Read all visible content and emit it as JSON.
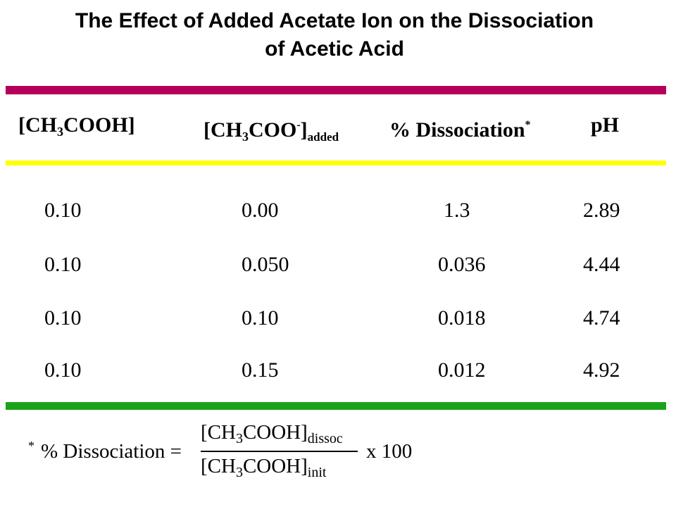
{
  "title": {
    "line1": "The Effect of Added Acetate Ion on the Dissociation",
    "line2": "of Acetic Acid"
  },
  "colors": {
    "rule_top": "#b5005b",
    "rule_mid": "#ffff00",
    "rule_bottom": "#1aa31a"
  },
  "headers": {
    "col1_a": "[CH",
    "col1_sub": "3",
    "col1_b": "COOH]",
    "col2_a": "[CH",
    "col2_sub": "3",
    "col2_b": "COO",
    "col2_sup": "-",
    "col2_c": "]",
    "col2_added": "added",
    "col3": "% Dissociation",
    "col3_star": "*",
    "col4": "pH"
  },
  "rows": [
    {
      "acid": "0.10",
      "acetate": "0.00",
      "dissociation": "1.3",
      "ph": "2.89"
    },
    {
      "acid": "0.10",
      "acetate": "0.050",
      "dissociation": "0.036",
      "ph": "4.44"
    },
    {
      "acid": "0.10",
      "acetate": "0.10",
      "dissociation": "0.018",
      "ph": "4.74"
    },
    {
      "acid": "0.10",
      "acetate": "0.15",
      "dissociation": "0.012",
      "ph": "4.92"
    }
  ],
  "footnote": {
    "star": "*",
    "lhs": "% Dissociation =",
    "num_a": "[CH",
    "num_sub": "3",
    "num_b": "COOH]",
    "num_sub2": "dissoc",
    "den_a": "[CH",
    "den_sub": "3",
    "den_b": "COOH]",
    "den_sub2": "init",
    "multiplier": "x 100"
  }
}
